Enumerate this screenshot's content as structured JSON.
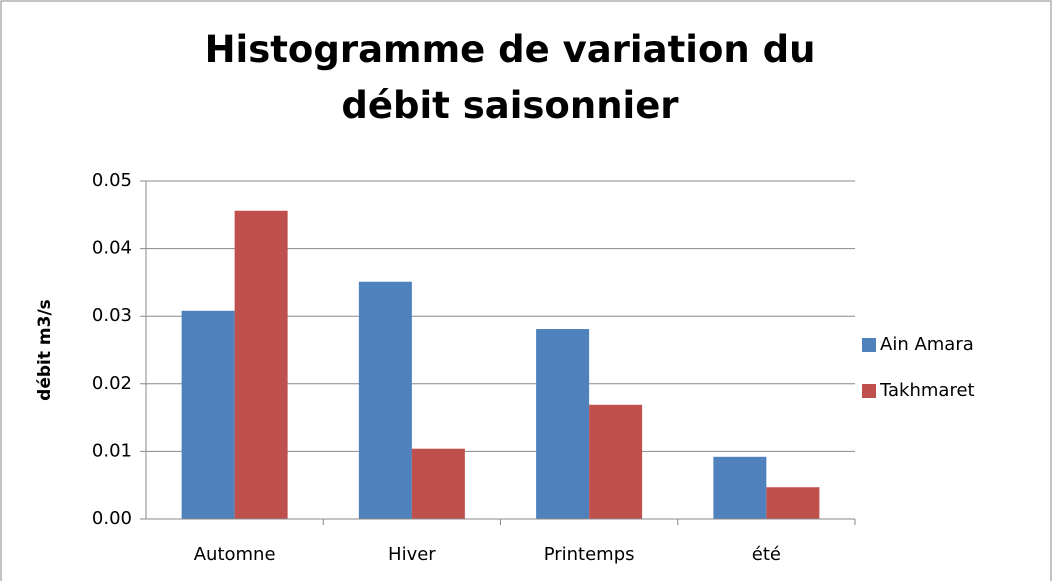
{
  "chart_data": {
    "type": "bar",
    "title": "Histogramme de variation du débit saisonnier",
    "y_label": "débit m3/s",
    "categories": [
      "Automne",
      "Hiver",
      "Printemps",
      "été"
    ],
    "series": [
      {
        "name": "Ain Amara",
        "color": "#4f81bd",
        "values": [
          0.0308,
          0.0351,
          0.0281,
          0.0092
        ]
      },
      {
        "name": "Takhmaret",
        "color": "#c0504d",
        "values": [
          0.0456,
          0.0104,
          0.0169,
          0.0047
        ]
      }
    ],
    "ylim": [
      0,
      0.05
    ],
    "yticks": [
      {
        "value": 0,
        "label": "0.00"
      },
      0.01,
      0.02,
      0.03,
      0.04,
      0.05
    ],
    "grid": true,
    "legend": "right"
  }
}
